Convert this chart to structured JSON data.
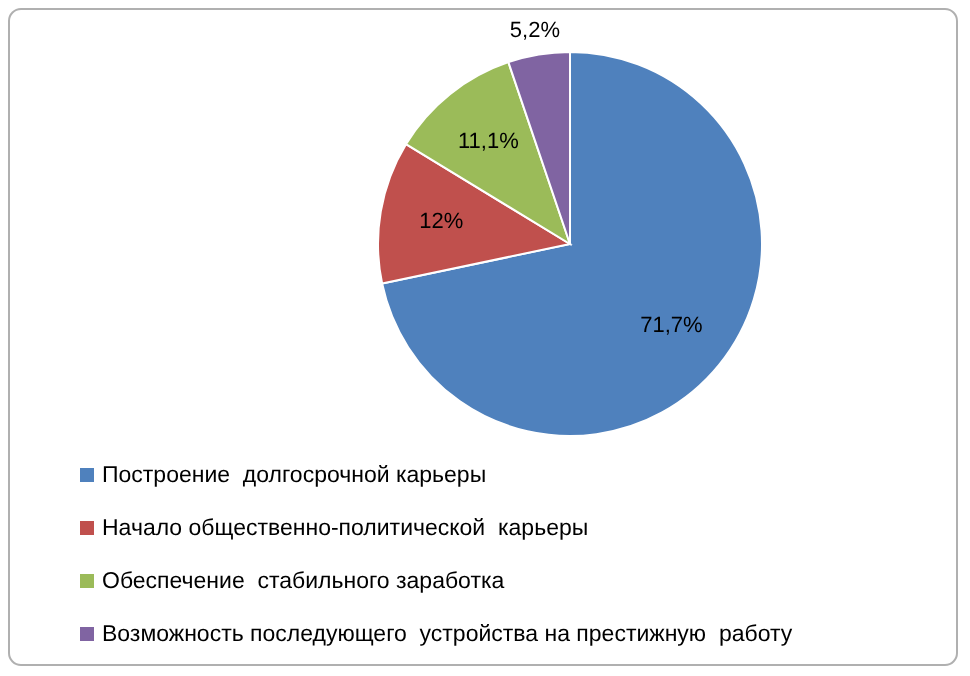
{
  "chart_data": {
    "type": "pie",
    "categories": [
      "Построение  долгосрочной карьеры",
      "Начало общественно-политической  карьеры",
      "Обеспечение  стабильного заработка",
      "Возможность последующего  устройства на престижную  работу"
    ],
    "values": [
      71.7,
      12,
      11.1,
      5.2
    ],
    "value_labels": [
      "71,7%",
      "12%",
      "11,1%",
      "5,2%"
    ],
    "colors": [
      "#4f81bd",
      "#c0504d",
      "#9bbb59",
      "#8064a2"
    ],
    "legend": "bottom"
  }
}
